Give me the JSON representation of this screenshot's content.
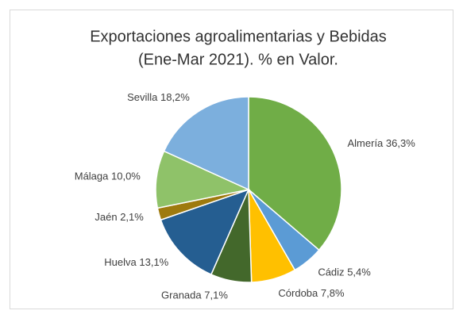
{
  "chart_data": {
    "type": "pie",
    "title": [
      "Exportaciones agroalimentarias y Bebidas",
      "(Ene-Mar 2021). % en Valor."
    ],
    "categories": [
      "Almería",
      "Cádiz",
      "Córdoba",
      "Granada",
      "Huelva",
      "Jaén",
      "Málaga",
      "Sevilla"
    ],
    "values": [
      36.3,
      5.4,
      7.8,
      7.1,
      13.1,
      2.1,
      10.0,
      18.2
    ],
    "value_labels": [
      "36,3%",
      "5,4%",
      "7,8%",
      "7,1%",
      "13,1%",
      "2,1%",
      "10,0%",
      "18,2%"
    ],
    "colors": [
      "#70ad47",
      "#5b9bd5",
      "#ffc000",
      "#43682b",
      "#255e91",
      "#9e7a0e",
      "#8fc269",
      "#7cafdd"
    ]
  }
}
